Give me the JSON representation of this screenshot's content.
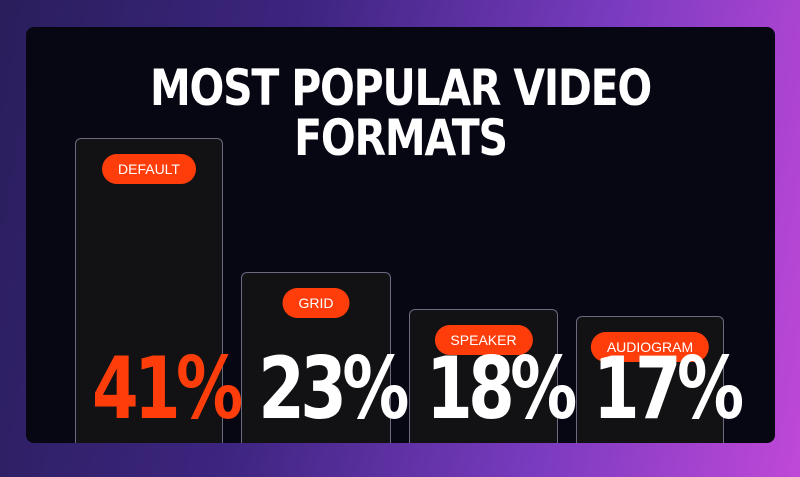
{
  "chart_data": {
    "type": "bar",
    "title": "MOST POPULAR VIDEO FORMATS",
    "categories": [
      "DEFAULT",
      "GRID",
      "SPEAKER",
      "AUDIOGRAM"
    ],
    "values": [
      41,
      23,
      18,
      17
    ],
    "value_labels": [
      "41%",
      "23%",
      "18%",
      "17%"
    ],
    "ylim": [
      0,
      45
    ],
    "grid": false,
    "legend": "none"
  },
  "colors": {
    "accent": "#ff3d0a",
    "highlight_value": "#ff3d0a",
    "value_text": "#ffffff",
    "card_background": "#060713",
    "bar_background": "#121214",
    "bar_border": "#6a6a80"
  }
}
